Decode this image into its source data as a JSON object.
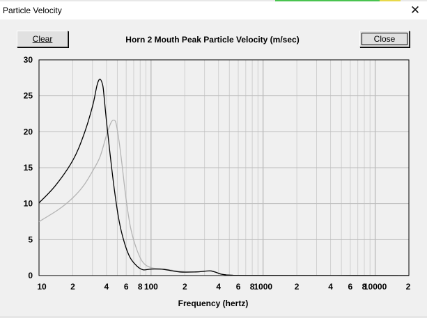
{
  "window": {
    "title": "Particle Velocity",
    "close_glyph": "✕"
  },
  "toolbar": {
    "clear_label": "Clear",
    "close_label": "Close"
  },
  "chart_data": {
    "type": "line",
    "title": "Horn 2 Mouth Peak Particle Velocity (m/sec)",
    "xlabel": "Frequency (hertz)",
    "ylabel": "",
    "xscale": "log",
    "xlim": [
      10,
      20000
    ],
    "ylim": [
      0,
      30
    ],
    "grid": true,
    "y_ticks": [
      "0",
      "5",
      "10",
      "15",
      "20",
      "25",
      "30"
    ],
    "x_ticks": [
      {
        "value": 10,
        "label": "10"
      },
      {
        "value": 20,
        "label": "2"
      },
      {
        "value": 40,
        "label": "4"
      },
      {
        "value": 60,
        "label": "6"
      },
      {
        "value": 80,
        "label": "8"
      },
      {
        "value": 100,
        "label": "100"
      },
      {
        "value": 200,
        "label": "2"
      },
      {
        "value": 400,
        "label": "4"
      },
      {
        "value": 600,
        "label": "6"
      },
      {
        "value": 800,
        "label": "8"
      },
      {
        "value": 1000,
        "label": "1000"
      },
      {
        "value": 2000,
        "label": "2"
      },
      {
        "value": 4000,
        "label": "4"
      },
      {
        "value": 6000,
        "label": "6"
      },
      {
        "value": 8000,
        "label": "8"
      },
      {
        "value": 10000,
        "label": "10000"
      },
      {
        "value": 20000,
        "label": "2"
      }
    ],
    "series": [
      {
        "color": "#000000",
        "x": [
          10,
          14,
          20,
          25,
          30,
          33,
          35,
          37,
          38,
          40,
          43,
          47,
          52,
          58,
          65,
          75,
          85,
          100,
          130,
          180,
          250,
          300,
          340,
          380,
          420,
          470,
          540,
          700,
          1000,
          20000
        ],
        "y": [
          10.1,
          12.5,
          16,
          19.5,
          23.5,
          26.5,
          27.3,
          26.5,
          25,
          21.5,
          17,
          12,
          7.5,
          4.5,
          2.5,
          1.3,
          0.8,
          0.9,
          0.85,
          0.5,
          0.5,
          0.6,
          0.65,
          0.45,
          0.2,
          0.1,
          0.05,
          0.02,
          0.02,
          0
        ]
      },
      {
        "color": "#b4b4b4",
        "x": [
          10,
          15,
          20,
          25,
          30,
          35,
          40,
          44,
          47,
          49,
          52,
          55,
          60,
          66,
          75,
          85,
          100,
          130,
          180,
          250,
          300,
          340,
          380,
          420,
          470,
          540,
          700,
          1000,
          20000
        ],
        "y": [
          7.5,
          9.2,
          10.8,
          12.5,
          14.5,
          16.5,
          19.5,
          21.3,
          21.6,
          21,
          18.5,
          15.5,
          10.5,
          6.5,
          3.5,
          1.8,
          1.1,
          0.9,
          0.6,
          0.5,
          0.6,
          0.65,
          0.45,
          0.2,
          0.1,
          0.05,
          0.02,
          0.02,
          0
        ]
      }
    ]
  }
}
